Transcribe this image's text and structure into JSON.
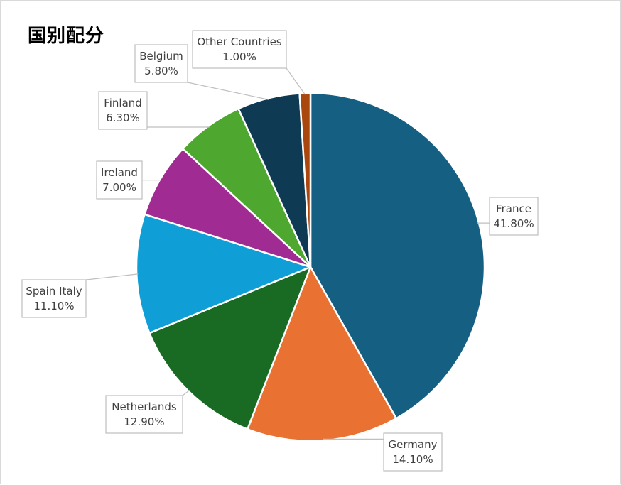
{
  "chart_data": {
    "type": "pie",
    "title": "国别配分",
    "categories": [
      "France",
      "Germany",
      "Netherlands",
      "Spain Italy",
      "Ireland",
      "Finland",
      "Belgium",
      "Other Countries"
    ],
    "values": [
      41.8,
      14.1,
      12.9,
      11.1,
      7.0,
      6.3,
      5.8,
      1.0
    ],
    "value_labels": [
      "41.80%",
      "14.10%",
      "12.90%",
      "11.10%",
      "7.00%",
      "6.30%",
      "5.80%",
      "1.00%"
    ],
    "colors": [
      "#156082",
      "#e97132",
      "#196b24",
      "#0f9ed5",
      "#a02b93",
      "#4ea72e",
      "#0e3a53",
      "#a9470e"
    ],
    "start_angle_deg": 0,
    "direction": "clockwise",
    "legend": "none",
    "data_labels": "callout boxes with category name and percentage"
  }
}
